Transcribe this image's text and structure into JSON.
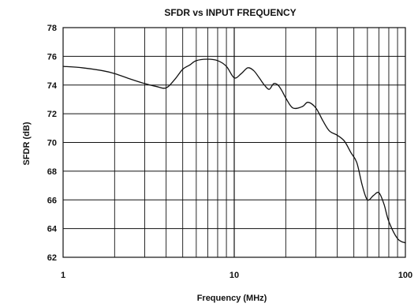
{
  "chart_data": {
    "type": "line",
    "title": "SFDR vs INPUT FREQUENCY",
    "xlabel": "Frequency (MHz)",
    "ylabel": "SFDR (dB)",
    "xscale": "log",
    "xlim": [
      1,
      100
    ],
    "ylim": [
      62,
      78
    ],
    "grid": true,
    "legend": "none",
    "x_tick_labels": [
      {
        "value": 1,
        "label": "1"
      },
      {
        "value": 10,
        "label": "10"
      },
      {
        "value": 100,
        "label": "100"
      }
    ],
    "y_tick_labels": [
      {
        "value": 62,
        "label": "62"
      },
      {
        "value": 64,
        "label": "64"
      },
      {
        "value": 66,
        "label": "66"
      },
      {
        "value": 68,
        "label": "68"
      },
      {
        "value": 70,
        "label": "70"
      },
      {
        "value": 72,
        "label": "72"
      },
      {
        "value": 74,
        "label": "74"
      },
      {
        "value": 76,
        "label": "76"
      },
      {
        "value": 78,
        "label": "78"
      }
    ],
    "series": [
      {
        "color": "#111111",
        "x": [
          1,
          1.3,
          1.7,
          2,
          2.5,
          3,
          3.5,
          4,
          4.5,
          5,
          5.5,
          6,
          7,
          8,
          9,
          10,
          11,
          12,
          13,
          14,
          15,
          16,
          17,
          18,
          19,
          20,
          22,
          25,
          27,
          30,
          33,
          36,
          40,
          44,
          48,
          52,
          56,
          60,
          65,
          70,
          75,
          80,
          90,
          100
        ],
        "y": [
          75.3,
          75.2,
          75.0,
          74.8,
          74.4,
          74.1,
          73.9,
          73.8,
          74.4,
          75.1,
          75.4,
          75.7,
          75.8,
          75.7,
          75.3,
          74.5,
          74.8,
          75.2,
          75.0,
          74.5,
          74.0,
          73.7,
          74.1,
          74.0,
          73.6,
          73.1,
          72.4,
          72.5,
          72.8,
          72.4,
          71.5,
          70.8,
          70.5,
          70.1,
          69.3,
          68.6,
          67.0,
          66.0,
          66.3,
          66.5,
          65.7,
          64.5,
          63.3,
          63.0
        ]
      }
    ]
  }
}
